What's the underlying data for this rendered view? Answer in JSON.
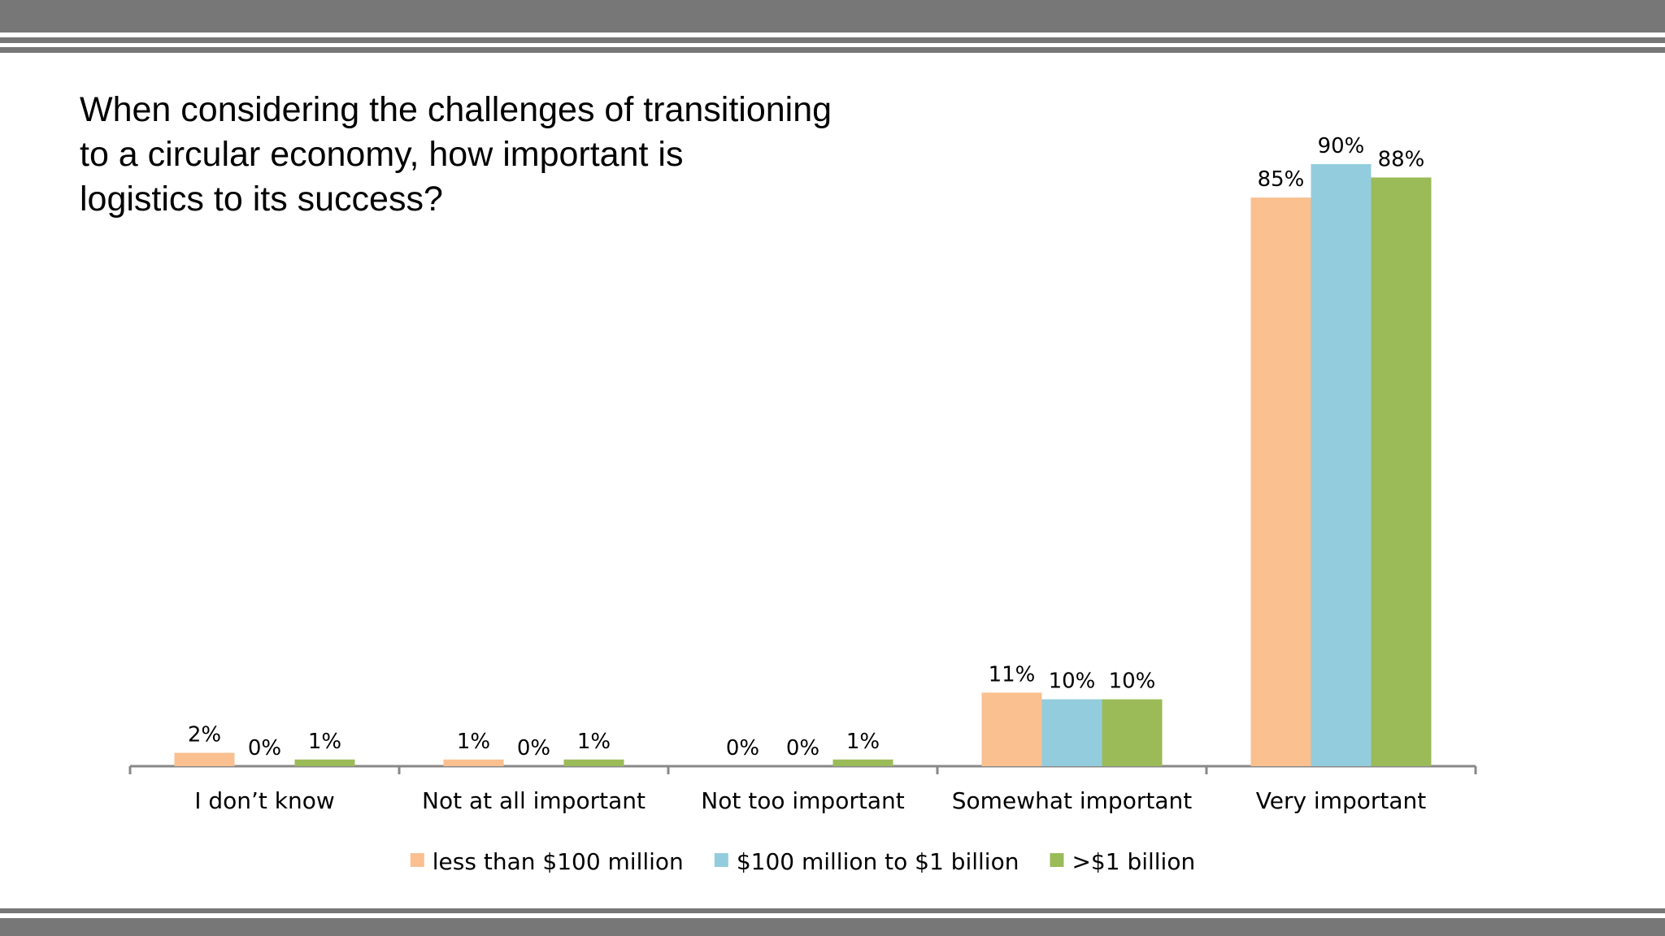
{
  "colors": {
    "band": "#777777",
    "axis": "#888888",
    "series": [
      "#FAC090",
      "#93CDDD",
      "#9BBB59"
    ]
  },
  "chart_data": {
    "type": "bar",
    "title_lines": [
      "When considering the challenges of transitioning",
      "to a circular economy, how important is",
      "logistics to its success?"
    ],
    "categories": [
      "I don’t know",
      "Not at all important",
      "Not too important",
      "Somewhat important",
      "Very important"
    ],
    "series": [
      {
        "name": "less than $100 million",
        "values": [
          2,
          1,
          0,
          11,
          85
        ],
        "labels": [
          "2%",
          "1%",
          "0%",
          "11%",
          "85%"
        ]
      },
      {
        "name": "$100 million to $1 billion",
        "values": [
          0,
          0,
          0,
          10,
          90
        ],
        "labels": [
          "0%",
          "0%",
          "0%",
          "10%",
          "90%"
        ]
      },
      {
        "name": ">$1 billion",
        "values": [
          1,
          1,
          1,
          10,
          88
        ],
        "labels": [
          "1%",
          "1%",
          "1%",
          "10%",
          "88%"
        ]
      }
    ],
    "ylim": [
      0,
      90
    ],
    "grid": false,
    "legend_position": "bottom"
  }
}
